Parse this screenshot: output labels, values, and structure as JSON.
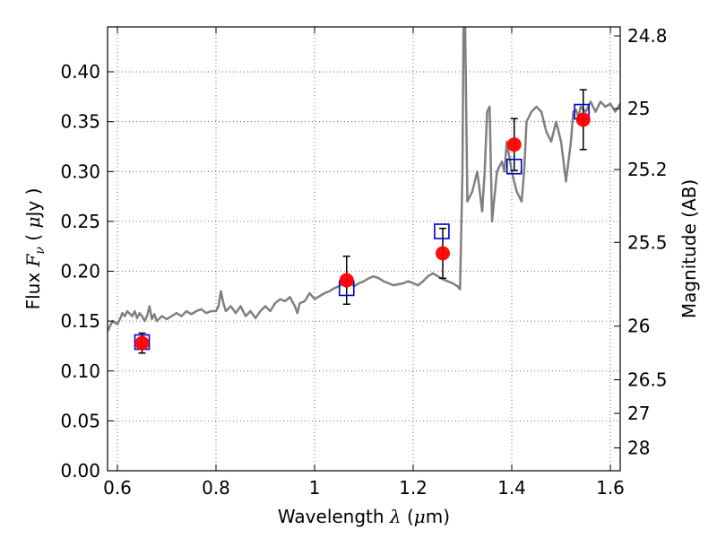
{
  "chart_data": {
    "type": "line",
    "xlabel": "Wavelength λ (μm)",
    "xlabel_parts": [
      "Wavelength ",
      "λ",
      " (",
      "μ",
      "m)"
    ],
    "ylabel": "Flux F_ν ( μJy )",
    "ylabel_parts": [
      "Flux  ",
      "F",
      "ν",
      "  ( ",
      "μ",
      "Jy )"
    ],
    "y2label": "Magnitude (AB)",
    "xlim": [
      0.58,
      1.62
    ],
    "ylim": [
      0.0,
      0.445
    ],
    "grid": true,
    "x_ticks": [
      0.6,
      0.8,
      1.0,
      1.2,
      1.4,
      1.6
    ],
    "x_tick_labels": [
      "0.6",
      "0.8",
      "1",
      "1.2",
      "1.4",
      "1.6"
    ],
    "y_ticks": [
      0.0,
      0.05,
      0.1,
      0.15,
      0.2,
      0.25,
      0.3,
      0.35,
      0.4
    ],
    "y_tick_labels": [
      "0.00",
      "0.05",
      "0.10",
      "0.15",
      "0.20",
      "0.25",
      "0.30",
      "0.35",
      "0.40"
    ],
    "y2_tick_labels": [
      "24.8",
      "25",
      "25.2",
      "25.5",
      "26",
      "26.5",
      "27",
      "28"
    ],
    "y2_tick_flux": [
      0.436,
      0.363,
      0.302,
      0.229,
      0.145,
      0.0912,
      0.0575,
      0.0229
    ],
    "colors": {
      "sed": "#808080",
      "observed": "#ff0000",
      "model": "#0000cc",
      "errorbar": "#000000",
      "grid": "#b0b0b0"
    },
    "series": [
      {
        "kind": "sed",
        "x": [
          0.58,
          0.59,
          0.6,
          0.605,
          0.61,
          0.615,
          0.62,
          0.63,
          0.635,
          0.64,
          0.645,
          0.65,
          0.655,
          0.66,
          0.665,
          0.67,
          0.675,
          0.68,
          0.69,
          0.7,
          0.71,
          0.72,
          0.73,
          0.74,
          0.75,
          0.76,
          0.77,
          0.78,
          0.79,
          0.8,
          0.805,
          0.81,
          0.815,
          0.82,
          0.83,
          0.84,
          0.85,
          0.86,
          0.87,
          0.88,
          0.89,
          0.9,
          0.91,
          0.92,
          0.93,
          0.94,
          0.95,
          0.96,
          0.965,
          0.97,
          0.98,
          0.99,
          1.0,
          1.01,
          1.02,
          1.03,
          1.04,
          1.05,
          1.06,
          1.07,
          1.08,
          1.09,
          1.1,
          1.11,
          1.12,
          1.13,
          1.14,
          1.15,
          1.16,
          1.17,
          1.18,
          1.19,
          1.2,
          1.21,
          1.22,
          1.23,
          1.24,
          1.25,
          1.26,
          1.27,
          1.28,
          1.29,
          1.295,
          1.3,
          1.302,
          1.305,
          1.31,
          1.32,
          1.33,
          1.335,
          1.34,
          1.345,
          1.35,
          1.355,
          1.36,
          1.37,
          1.38,
          1.385,
          1.39,
          1.4,
          1.41,
          1.42,
          1.425,
          1.43,
          1.44,
          1.45,
          1.46,
          1.47,
          1.48,
          1.49,
          1.5,
          1.51,
          1.52,
          1.525,
          1.53,
          1.535,
          1.54,
          1.55,
          1.56,
          1.57,
          1.58,
          1.59,
          1.6,
          1.61,
          1.62
        ],
        "y": [
          0.14,
          0.15,
          0.147,
          0.152,
          0.158,
          0.155,
          0.16,
          0.155,
          0.16,
          0.153,
          0.158,
          0.155,
          0.15,
          0.155,
          0.165,
          0.152,
          0.157,
          0.15,
          0.155,
          0.152,
          0.155,
          0.158,
          0.155,
          0.16,
          0.157,
          0.16,
          0.162,
          0.158,
          0.16,
          0.16,
          0.165,
          0.18,
          0.168,
          0.16,
          0.165,
          0.158,
          0.165,
          0.155,
          0.16,
          0.153,
          0.16,
          0.165,
          0.16,
          0.168,
          0.172,
          0.17,
          0.174,
          0.165,
          0.158,
          0.168,
          0.17,
          0.178,
          0.172,
          0.175,
          0.178,
          0.18,
          0.183,
          0.185,
          0.188,
          0.19,
          0.185,
          0.188,
          0.19,
          0.193,
          0.195,
          0.193,
          0.19,
          0.188,
          0.186,
          0.187,
          0.188,
          0.19,
          0.188,
          0.186,
          0.19,
          0.195,
          0.198,
          0.195,
          0.192,
          0.19,
          0.188,
          0.185,
          0.182,
          0.3,
          0.44,
          0.46,
          0.27,
          0.28,
          0.3,
          0.28,
          0.26,
          0.3,
          0.36,
          0.365,
          0.25,
          0.3,
          0.31,
          0.3,
          0.33,
          0.3,
          0.28,
          0.27,
          0.3,
          0.35,
          0.36,
          0.365,
          0.36,
          0.34,
          0.33,
          0.35,
          0.33,
          0.29,
          0.33,
          0.36,
          0.362,
          0.355,
          0.365,
          0.36,
          0.37,
          0.36,
          0.37,
          0.365,
          0.368,
          0.36,
          0.368
        ],
        "clip": true
      },
      {
        "kind": "model-squares",
        "x": [
          0.65,
          1.065,
          1.258,
          1.405,
          1.542
        ],
        "y": [
          0.129,
          0.183,
          0.24,
          0.305,
          0.36
        ]
      },
      {
        "kind": "observed",
        "x": [
          0.65,
          1.065,
          1.26,
          1.405,
          1.545
        ],
        "y": [
          0.128,
          0.191,
          0.218,
          0.327,
          0.352
        ],
        "yerr": [
          0.01,
          0.024,
          0.025,
          0.026,
          0.03
        ]
      }
    ]
  }
}
